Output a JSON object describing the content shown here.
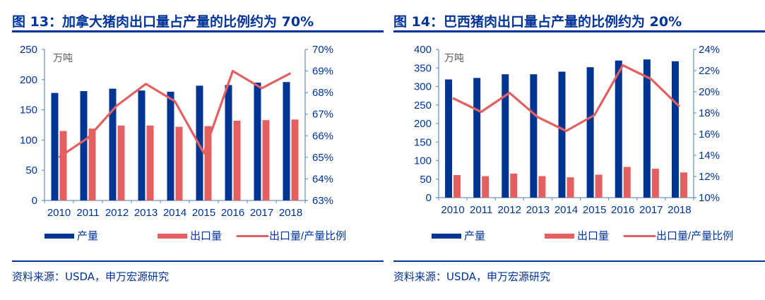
{
  "panels": [
    {
      "title": "图 13：加拿大猪肉出口量占产量的比例约为 70%",
      "source": "资料来源：USDA，申万宏源研究"
    },
    {
      "title": "图 14：巴西猪肉出口量占产量的比例约为 20%",
      "source": "资料来源：USDA，申万宏源研究"
    }
  ],
  "colors": {
    "production": "#003594",
    "export": "#e46060",
    "ratio": "#e46060",
    "axis": "#6f95c9",
    "text": "#00339a",
    "unit": "#595959"
  },
  "chart_data": [
    {
      "type": "bar",
      "title": "加拿大猪肉出口量占产量的比例约为 70%",
      "unit_label": "万吨",
      "categories": [
        "2010",
        "2011",
        "2012",
        "2013",
        "2014",
        "2015",
        "2016",
        "2017",
        "2018"
      ],
      "series": [
        {
          "name": "产量",
          "type": "bar",
          "axis": "left",
          "values": [
            178,
            181,
            185,
            182,
            180,
            190,
            191,
            195,
            196
          ]
        },
        {
          "name": "出口量",
          "type": "bar",
          "axis": "left",
          "values": [
            115,
            119,
            124,
            124,
            122,
            123,
            132,
            133,
            134
          ]
        },
        {
          "name": "出口量/产量比例",
          "type": "line",
          "axis": "right",
          "values": [
            65.0,
            65.9,
            67.4,
            68.4,
            67.6,
            65.2,
            69.0,
            68.2,
            68.9
          ]
        }
      ],
      "left_axis": {
        "ylim": [
          0,
          250
        ],
        "ticks": [
          0,
          50,
          100,
          150,
          200,
          250
        ],
        "tick_labels": [
          "0",
          "50",
          "100",
          "150",
          "200",
          "250"
        ]
      },
      "right_axis": {
        "ylim": [
          63,
          70
        ],
        "ticks": [
          63,
          64,
          65,
          66,
          67,
          68,
          69,
          70
        ],
        "tick_labels": [
          "63%",
          "64%",
          "65%",
          "66%",
          "67%",
          "68%",
          "69%",
          "70%"
        ]
      },
      "legend": {
        "placement": "bottom",
        "entries": [
          "产量",
          "出口量",
          "出口量/产量比例"
        ]
      },
      "grid": false
    },
    {
      "type": "bar",
      "title": "巴西猪肉出口量占产量的比例约为 20%",
      "unit_label": "万吨",
      "categories": [
        "2010",
        "2011",
        "2012",
        "2013",
        "2014",
        "2015",
        "2016",
        "2017",
        "2018"
      ],
      "series": [
        {
          "name": "产量",
          "type": "bar",
          "axis": "left",
          "values": [
            319,
            323,
            333,
            333,
            340,
            352,
            370,
            373,
            368
          ]
        },
        {
          "name": "出口量",
          "type": "bar",
          "axis": "left",
          "values": [
            61,
            58,
            65,
            58,
            55,
            62,
            83,
            78,
            68
          ]
        },
        {
          "name": "出口量/产量比例",
          "type": "line",
          "axis": "right",
          "values": [
            19.4,
            18.1,
            19.9,
            17.6,
            16.3,
            17.8,
            22.5,
            21.2,
            18.6
          ]
        }
      ],
      "left_axis": {
        "ylim": [
          0,
          400
        ],
        "ticks": [
          0,
          50,
          100,
          150,
          200,
          250,
          300,
          350,
          400
        ],
        "tick_labels": [
          "0",
          "50",
          "100",
          "150",
          "200",
          "250",
          "300",
          "350",
          "400"
        ]
      },
      "right_axis": {
        "ylim": [
          10,
          24
        ],
        "ticks": [
          10,
          12,
          14,
          16,
          18,
          20,
          22,
          24
        ],
        "tick_labels": [
          "10%",
          "12%",
          "14%",
          "16%",
          "18%",
          "20%",
          "22%",
          "24%"
        ]
      },
      "legend": {
        "placement": "bottom",
        "entries": [
          "产量",
          "出口量",
          "出口量/产量比例"
        ]
      },
      "grid": false
    }
  ]
}
